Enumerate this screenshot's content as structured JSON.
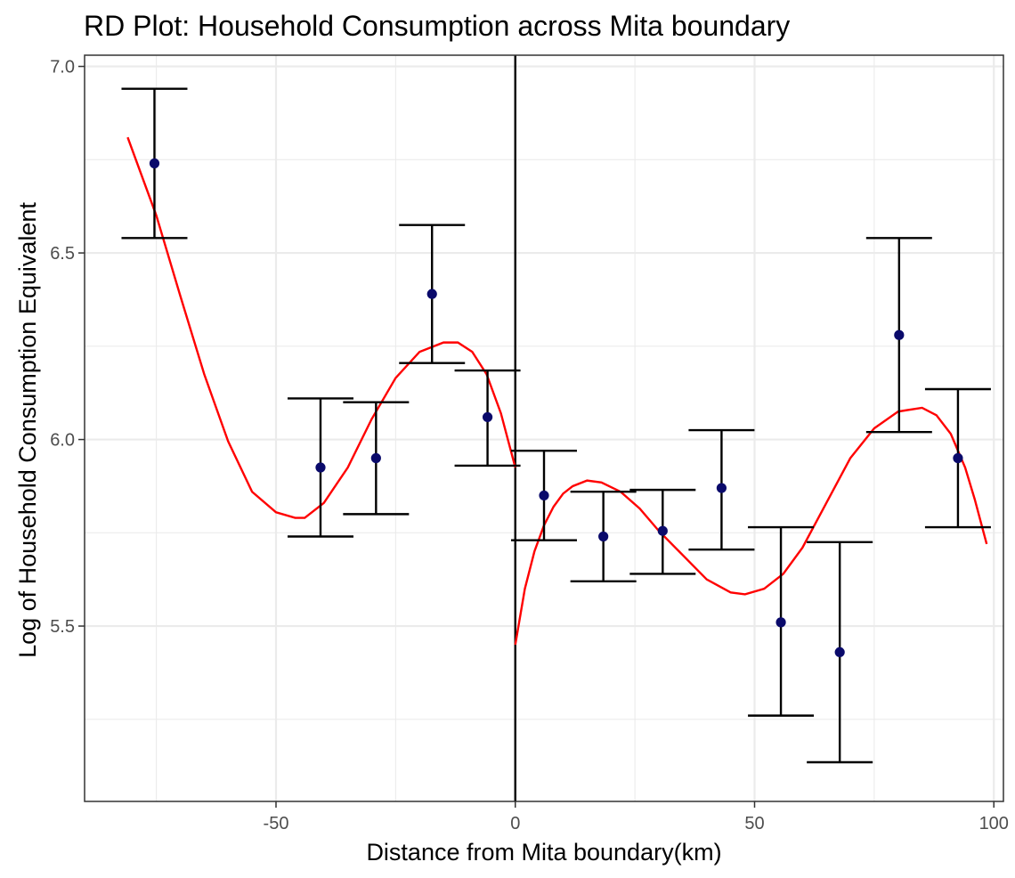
{
  "chart_data": {
    "type": "scatter",
    "title": "RD Plot: Household Consumption across Mita boundary",
    "xlabel": "Distance from Mita boundary(km)",
    "ylabel": "Log of Household Consumption Equivalent",
    "xlim": [
      -90,
      102
    ],
    "ylim": [
      5.03,
      7.03
    ],
    "x_ticks": [
      -50,
      0,
      50,
      100
    ],
    "x_tick_labels": [
      "-50",
      "0",
      "50",
      "100"
    ],
    "x_minor": [
      -75,
      -25,
      25,
      75
    ],
    "y_ticks": [
      5.5,
      6.0,
      6.5,
      7.0
    ],
    "y_tick_labels": [
      "5.5",
      "6.0",
      "6.5",
      "7.0"
    ],
    "y_minor": [
      5.25,
      5.75,
      6.25,
      6.75
    ],
    "grid": true,
    "cutoff_x": 0,
    "colors": {
      "points": "#0a0a6b",
      "error_bars": "#000000",
      "fit": "#ff0000",
      "cutoff": "#000000"
    },
    "bins": [
      {
        "x": -75.4,
        "y": 6.74,
        "lo": 6.54,
        "hi": 6.94
      },
      {
        "x": -40.7,
        "y": 5.925,
        "lo": 5.74,
        "hi": 6.11
      },
      {
        "x": -29.1,
        "y": 5.95,
        "lo": 5.8,
        "hi": 6.1
      },
      {
        "x": -17.4,
        "y": 6.39,
        "lo": 6.205,
        "hi": 6.575
      },
      {
        "x": -5.8,
        "y": 6.06,
        "lo": 5.93,
        "hi": 6.185
      },
      {
        "x": 6.0,
        "y": 5.85,
        "lo": 5.73,
        "hi": 5.97
      },
      {
        "x": 18.4,
        "y": 5.74,
        "lo": 5.62,
        "hi": 5.86
      },
      {
        "x": 30.8,
        "y": 5.755,
        "lo": 5.64,
        "hi": 5.865
      },
      {
        "x": 43.1,
        "y": 5.87,
        "lo": 5.705,
        "hi": 6.025
      },
      {
        "x": 55.5,
        "y": 5.51,
        "lo": 5.26,
        "hi": 5.765
      },
      {
        "x": 67.8,
        "y": 5.43,
        "lo": 5.135,
        "hi": 5.725
      },
      {
        "x": 80.2,
        "y": 6.28,
        "lo": 6.02,
        "hi": 6.54
      },
      {
        "x": 92.5,
        "y": 5.95,
        "lo": 5.765,
        "hi": 6.135
      }
    ],
    "fit_left": {
      "x": [
        -81,
        -75,
        -70,
        -65,
        -60,
        -55,
        -50,
        -46,
        -44,
        -40,
        -35,
        -30,
        -25,
        -20,
        -15,
        -12,
        -9,
        -6,
        -3,
        0
      ],
      "y": [
        6.81,
        6.6,
        6.385,
        6.175,
        5.995,
        5.86,
        5.805,
        5.79,
        5.79,
        5.83,
        5.925,
        6.055,
        6.165,
        6.235,
        6.26,
        6.26,
        6.235,
        6.175,
        6.07,
        5.925
      ]
    },
    "fit_right": {
      "x": [
        0,
        2,
        4,
        6,
        8,
        10,
        12,
        15,
        18,
        22,
        26,
        30,
        35,
        40,
        45,
        48,
        52,
        56,
        60,
        65,
        70,
        75,
        80,
        85,
        88,
        91,
        94,
        96,
        98.5
      ],
      "y": [
        5.45,
        5.6,
        5.7,
        5.77,
        5.82,
        5.855,
        5.875,
        5.89,
        5.885,
        5.86,
        5.815,
        5.755,
        5.69,
        5.625,
        5.59,
        5.585,
        5.6,
        5.64,
        5.71,
        5.83,
        5.95,
        6.03,
        6.075,
        6.085,
        6.065,
        6.015,
        5.925,
        5.84,
        5.72
      ]
    }
  }
}
